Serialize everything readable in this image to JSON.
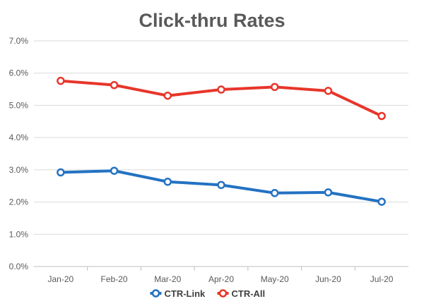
{
  "chart_data": {
    "type": "line",
    "title": "Click-thru Rates",
    "categories": [
      "Jan-20",
      "Feb-20",
      "Mar-20",
      "Apr-20",
      "May-20",
      "Jun-20",
      "Jul-20"
    ],
    "y_ticks": [
      "0.0%",
      "1.0%",
      "2.0%",
      "3.0%",
      "4.0%",
      "5.0%",
      "6.0%",
      "7.0%"
    ],
    "ylim": [
      0,
      7
    ],
    "grid": true,
    "legend_position": "bottom",
    "series": [
      {
        "name": "CTR-Link",
        "color": "#2372C2",
        "values": [
          2.92,
          2.97,
          2.63,
          2.53,
          2.28,
          2.3,
          2.01
        ]
      },
      {
        "name": "CTR-All",
        "color": "#E8352A",
        "values": [
          5.76,
          5.63,
          5.3,
          5.49,
          5.57,
          5.45,
          4.67
        ]
      }
    ]
  }
}
